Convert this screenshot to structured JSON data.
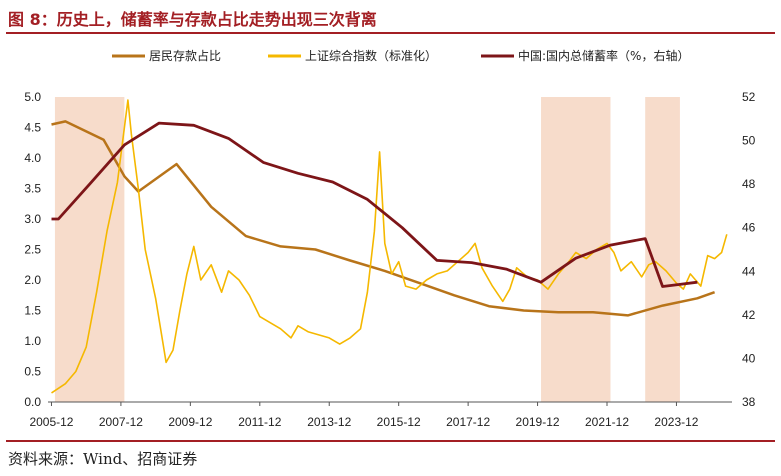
{
  "title": "图 8：历史上，储蓄率与存款占比走势出现三次背离",
  "source": "资料来源：Wind、招商证券",
  "colors": {
    "title": "#a31f24",
    "deposit": "#b8741a",
    "index": "#f5b800",
    "saving": "#7d1518",
    "shade": "#f7dccb"
  },
  "chart_data": {
    "type": "line",
    "x_tick_labels": [
      "2005-12",
      "2007-12",
      "2009-12",
      "2011-12",
      "2013-12",
      "2015-12",
      "2017-12",
      "2019-12",
      "2021-12",
      "2023-12"
    ],
    "left_axis": {
      "ylim": [
        0,
        5
      ],
      "ticks": [
        "0.0",
        "0.5",
        "1.0",
        "1.5",
        "2.0",
        "2.5",
        "3.0",
        "3.5",
        "4.0",
        "4.5",
        "5.0"
      ]
    },
    "right_axis": {
      "ylim": [
        38,
        52
      ],
      "ticks": [
        "38",
        "40",
        "42",
        "44",
        "46",
        "48",
        "50",
        "52"
      ]
    },
    "legend": [
      "居民存款占比",
      "上证综合指数（标准化）",
      "中国:国内总储蓄率（%，右轴）"
    ],
    "shaded_periods": [
      [
        2006.0,
        2008.0
      ],
      [
        2020.0,
        2022.0
      ],
      [
        2023.0,
        2024.0
      ]
    ],
    "series": [
      {
        "name": "居民存款占比",
        "axis": "left",
        "points": [
          [
            2005.9,
            4.55
          ],
          [
            2006.3,
            4.6
          ],
          [
            2007.4,
            4.3
          ],
          [
            2008.0,
            3.7
          ],
          [
            2008.4,
            3.45
          ],
          [
            2009.5,
            3.9
          ],
          [
            2010.5,
            3.2
          ],
          [
            2011.5,
            2.72
          ],
          [
            2012.5,
            2.55
          ],
          [
            2013.5,
            2.5
          ],
          [
            2014.5,
            2.32
          ],
          [
            2015.5,
            2.15
          ],
          [
            2016.5,
            1.95
          ],
          [
            2017.5,
            1.75
          ],
          [
            2018.5,
            1.57
          ],
          [
            2019.5,
            1.5
          ],
          [
            2020.5,
            1.47
          ],
          [
            2021.5,
            1.47
          ],
          [
            2022.5,
            1.42
          ],
          [
            2023.5,
            1.58
          ],
          [
            2024.5,
            1.7
          ],
          [
            2025.0,
            1.8
          ]
        ]
      },
      {
        "name": "上证综合指数（标准化）",
        "axis": "left",
        "points": [
          [
            2005.9,
            0.15
          ],
          [
            2006.3,
            0.3
          ],
          [
            2006.6,
            0.5
          ],
          [
            2006.9,
            0.9
          ],
          [
            2007.2,
            1.8
          ],
          [
            2007.5,
            2.8
          ],
          [
            2007.8,
            3.6
          ],
          [
            2008.0,
            4.5
          ],
          [
            2008.1,
            4.95
          ],
          [
            2008.2,
            4.4
          ],
          [
            2008.4,
            3.5
          ],
          [
            2008.6,
            2.5
          ],
          [
            2008.9,
            1.7
          ],
          [
            2009.1,
            1.0
          ],
          [
            2009.2,
            0.65
          ],
          [
            2009.4,
            0.85
          ],
          [
            2009.6,
            1.5
          ],
          [
            2009.8,
            2.1
          ],
          [
            2010.0,
            2.55
          ],
          [
            2010.2,
            2.0
          ],
          [
            2010.5,
            2.25
          ],
          [
            2010.8,
            1.8
          ],
          [
            2011.0,
            2.15
          ],
          [
            2011.3,
            2.0
          ],
          [
            2011.6,
            1.75
          ],
          [
            2011.9,
            1.4
          ],
          [
            2012.2,
            1.3
          ],
          [
            2012.5,
            1.2
          ],
          [
            2012.8,
            1.05
          ],
          [
            2013.0,
            1.25
          ],
          [
            2013.3,
            1.15
          ],
          [
            2013.6,
            1.1
          ],
          [
            2013.9,
            1.05
          ],
          [
            2014.2,
            0.95
          ],
          [
            2014.5,
            1.05
          ],
          [
            2014.8,
            1.2
          ],
          [
            2015.0,
            1.8
          ],
          [
            2015.2,
            2.8
          ],
          [
            2015.35,
            4.1
          ],
          [
            2015.5,
            2.6
          ],
          [
            2015.7,
            2.1
          ],
          [
            2015.9,
            2.3
          ],
          [
            2016.1,
            1.9
          ],
          [
            2016.4,
            1.85
          ],
          [
            2016.7,
            2.0
          ],
          [
            2017.0,
            2.1
          ],
          [
            2017.3,
            2.15
          ],
          [
            2017.6,
            2.3
          ],
          [
            2017.9,
            2.45
          ],
          [
            2018.1,
            2.6
          ],
          [
            2018.3,
            2.2
          ],
          [
            2018.6,
            1.9
          ],
          [
            2018.9,
            1.65
          ],
          [
            2019.1,
            1.85
          ],
          [
            2019.3,
            2.2
          ],
          [
            2019.6,
            2.05
          ],
          [
            2019.9,
            2.0
          ],
          [
            2020.2,
            1.85
          ],
          [
            2020.5,
            2.1
          ],
          [
            2020.8,
            2.3
          ],
          [
            2021.0,
            2.45
          ],
          [
            2021.3,
            2.35
          ],
          [
            2021.6,
            2.5
          ],
          [
            2021.9,
            2.6
          ],
          [
            2022.1,
            2.45
          ],
          [
            2022.3,
            2.15
          ],
          [
            2022.6,
            2.3
          ],
          [
            2022.9,
            2.05
          ],
          [
            2023.1,
            2.25
          ],
          [
            2023.3,
            2.3
          ],
          [
            2023.6,
            2.15
          ],
          [
            2023.9,
            1.95
          ],
          [
            2024.1,
            1.85
          ],
          [
            2024.3,
            2.1
          ],
          [
            2024.6,
            1.9
          ],
          [
            2024.8,
            2.4
          ],
          [
            2025.0,
            2.35
          ],
          [
            2025.2,
            2.45
          ],
          [
            2025.35,
            2.75
          ]
        ]
      },
      {
        "name": "中国:国内总储蓄率（%，右轴）",
        "axis": "right",
        "points": [
          [
            2005.9,
            46.4
          ],
          [
            2006.1,
            46.4
          ],
          [
            2007.0,
            48.0
          ],
          [
            2008.0,
            49.8
          ],
          [
            2009.0,
            50.8
          ],
          [
            2010.0,
            50.7
          ],
          [
            2011.0,
            50.1
          ],
          [
            2012.0,
            49.0
          ],
          [
            2013.0,
            48.5
          ],
          [
            2014.0,
            48.1
          ],
          [
            2015.0,
            47.3
          ],
          [
            2016.0,
            46.0
          ],
          [
            2017.0,
            44.5
          ],
          [
            2018.0,
            44.4
          ],
          [
            2019.0,
            44.1
          ],
          [
            2020.0,
            43.5
          ],
          [
            2021.0,
            44.6
          ],
          [
            2022.0,
            45.2
          ],
          [
            2023.0,
            45.5
          ],
          [
            2023.5,
            43.3
          ],
          [
            2024.0,
            43.4
          ],
          [
            2024.5,
            43.5
          ]
        ]
      }
    ]
  }
}
